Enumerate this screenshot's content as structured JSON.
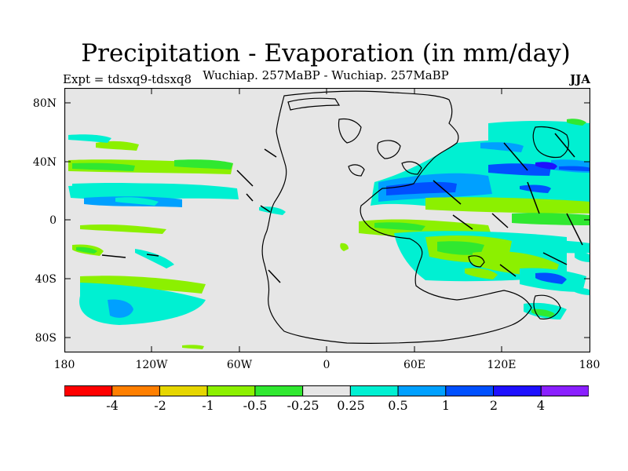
{
  "title": "Precipitation - Evaporation (in mm/day)",
  "subtitle": "Wuchiap. 257MaBP - Wuchiap. 257MaBP",
  "left_label": "Expt = tdsxq9-tdsxq8",
  "right_label": "JJA",
  "map": {
    "lat_ticks": [
      "80N",
      "40N",
      "0",
      "40S",
      "80S"
    ],
    "lon_ticks": [
      "180",
      "120W",
      "60W",
      "0",
      "60E",
      "120E",
      "180"
    ],
    "background_color": "#e6e6e6"
  },
  "legend": {
    "colors": [
      "#ff0000",
      "#ff7f00",
      "#e6d600",
      "#8cf000",
      "#30e830",
      "#e6e6e6",
      "#00f0d2",
      "#00a0ff",
      "#0050ff",
      "#1e10ff",
      "#8a20ff"
    ],
    "labels": [
      "-4",
      "-2",
      "-1",
      "-0.5",
      "-0.25",
      "0.25",
      "0.5",
      "1",
      "2",
      "4"
    ]
  }
}
